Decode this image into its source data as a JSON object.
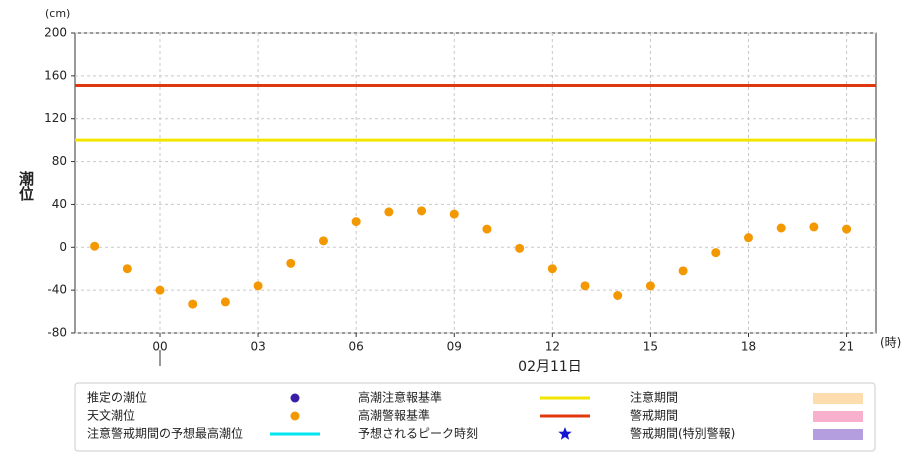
{
  "chart_data": {
    "type": "scatter",
    "y_label": "潮位",
    "y_unit": "(cm)",
    "x_unit": "(時)",
    "x_label": "02月11日",
    "x": [
      -2,
      -1,
      0,
      1,
      2,
      3,
      4,
      5,
      6,
      7,
      8,
      9,
      10,
      11,
      12,
      13,
      14,
      15,
      16,
      17,
      18,
      19,
      20,
      21
    ],
    "series": [
      {
        "name": "天文潮位",
        "color": "#f39800",
        "values": [
          1,
          -20,
          -40,
          -53,
          -51,
          -36,
          -15,
          6,
          24,
          33,
          34,
          31,
          17,
          -1,
          -20,
          -36,
          -45,
          -36,
          -22,
          -5,
          9,
          18,
          19,
          17
        ]
      }
    ],
    "hlines": [
      {
        "name": "高潮注意報基準",
        "value": 100,
        "color": "#f2e600"
      },
      {
        "name": "高潮警報基準",
        "value": 151,
        "color": "#e0380e"
      }
    ],
    "xlim": [
      -2.6,
      21.9
    ],
    "ylim": [
      -80,
      200
    ],
    "xticks": [
      {
        "value": 0,
        "label": "00"
      },
      {
        "value": 3,
        "label": "03"
      },
      {
        "value": 6,
        "label": "06"
      },
      {
        "value": 9,
        "label": "09"
      },
      12,
      15,
      18,
      21
    ],
    "yticks": [
      200,
      160,
      120,
      80,
      40,
      0,
      -40,
      -80
    ],
    "grid": true,
    "legend": [
      {
        "name": "推定の潮位",
        "symbol": "dot",
        "color": "#3a1ea8"
      },
      {
        "name": "天文潮位",
        "symbol": "dot",
        "color": "#f39800"
      },
      {
        "name": "注意警戒期間の予想最高潮位",
        "symbol": "line",
        "color": "#00e5f0"
      },
      {
        "name": "高潮注意報基準",
        "symbol": "line",
        "color": "#f2e600"
      },
      {
        "name": "高潮警報基準",
        "symbol": "line",
        "color": "#e0380e"
      },
      {
        "name": "予想されるピーク時刻",
        "symbol": "star",
        "color": "#1414d2"
      },
      {
        "name": "注意期間",
        "symbol": "rect",
        "color": "#fddcb0"
      },
      {
        "name": "警戒期間",
        "symbol": "rect",
        "color": "#f8b0cc"
      },
      {
        "name": "警戒期間(特別警報)",
        "symbol": "rect",
        "color": "#b49ee0"
      }
    ]
  }
}
